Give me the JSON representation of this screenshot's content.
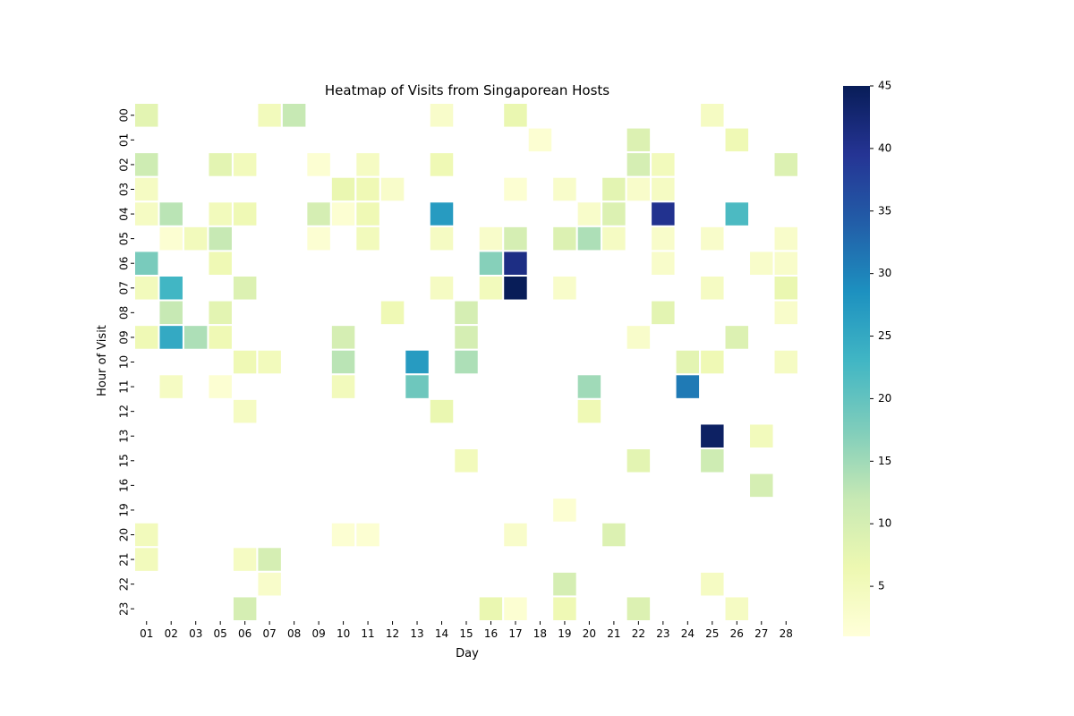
{
  "chart_data": {
    "type": "heatmap",
    "title": "Heatmap of Visits from Singaporean Hosts",
    "xlabel": "Day",
    "ylabel": "Hour of Visit",
    "x_categories": [
      "01",
      "02",
      "03",
      "05",
      "06",
      "07",
      "08",
      "09",
      "10",
      "11",
      "12",
      "13",
      "14",
      "15",
      "16",
      "17",
      "18",
      "19",
      "20",
      "21",
      "22",
      "23",
      "24",
      "25",
      "26",
      "27",
      "28"
    ],
    "y_categories": [
      "00",
      "01",
      "02",
      "03",
      "04",
      "05",
      "06",
      "07",
      "08",
      "09",
      "10",
      "11",
      "12",
      "13",
      "15",
      "16",
      "19",
      "20",
      "21",
      "22",
      "23"
    ],
    "colorbar": {
      "min": 1,
      "max": 45,
      "ticks": [
        5,
        10,
        15,
        20,
        25,
        30,
        35,
        40,
        45
      ],
      "colormap": "YlGnBu"
    },
    "values": [
      [
        8,
        null,
        null,
        null,
        null,
        5,
        12,
        null,
        null,
        null,
        null,
        null,
        3,
        null,
        null,
        7,
        null,
        null,
        null,
        null,
        null,
        null,
        null,
        4,
        null,
        null,
        null
      ],
      [
        null,
        null,
        null,
        null,
        null,
        null,
        null,
        null,
        null,
        null,
        null,
        null,
        null,
        null,
        null,
        null,
        2,
        null,
        null,
        null,
        9,
        null,
        null,
        null,
        6,
        null,
        null
      ],
      [
        11,
        null,
        null,
        8,
        5,
        null,
        null,
        2,
        null,
        4,
        null,
        null,
        6,
        null,
        null,
        null,
        null,
        null,
        null,
        null,
        10,
        5,
        null,
        null,
        null,
        null,
        9
      ],
      [
        4,
        null,
        null,
        null,
        null,
        null,
        null,
        null,
        7,
        6,
        3,
        null,
        null,
        null,
        null,
        2,
        null,
        3,
        null,
        8,
        3,
        4,
        null,
        null,
        null,
        null,
        null
      ],
      [
        4,
        13,
        null,
        5,
        6,
        null,
        null,
        10,
        2,
        6,
        null,
        null,
        27,
        null,
        null,
        null,
        null,
        null,
        3,
        9,
        null,
        40,
        null,
        null,
        22,
        null,
        null
      ],
      [
        null,
        2,
        5,
        12,
        null,
        null,
        null,
        2,
        null,
        5,
        null,
        null,
        4,
        null,
        3,
        10,
        null,
        9,
        14,
        4,
        null,
        3,
        null,
        3,
        null,
        null,
        3
      ],
      [
        18,
        null,
        null,
        6,
        null,
        null,
        null,
        null,
        null,
        null,
        null,
        null,
        null,
        null,
        17,
        41,
        null,
        null,
        null,
        null,
        null,
        3,
        null,
        null,
        null,
        3,
        3
      ],
      [
        5,
        23,
        null,
        null,
        9,
        null,
        null,
        null,
        null,
        null,
        null,
        null,
        4,
        null,
        5,
        45,
        null,
        3,
        null,
        null,
        null,
        null,
        null,
        4,
        null,
        null,
        7
      ],
      [
        null,
        12,
        null,
        8,
        null,
        null,
        null,
        null,
        null,
        null,
        6,
        null,
        null,
        10,
        null,
        null,
        null,
        null,
        null,
        null,
        null,
        8,
        null,
        null,
        null,
        null,
        3
      ],
      [
        6,
        25,
        14,
        6,
        null,
        null,
        null,
        null,
        10,
        null,
        null,
        null,
        null,
        10,
        null,
        null,
        null,
        null,
        null,
        null,
        3,
        null,
        null,
        null,
        9,
        null,
        null
      ],
      [
        null,
        null,
        null,
        null,
        6,
        5,
        null,
        null,
        13,
        null,
        null,
        27,
        null,
        14,
        null,
        null,
        null,
        null,
        null,
        null,
        null,
        null,
        8,
        6,
        null,
        null,
        4
      ],
      [
        null,
        4,
        null,
        2,
        null,
        null,
        null,
        null,
        5,
        null,
        null,
        19,
        null,
        null,
        null,
        null,
        null,
        null,
        15,
        null,
        null,
        null,
        31,
        null,
        null,
        null,
        null
      ],
      [
        null,
        null,
        null,
        null,
        4,
        null,
        null,
        null,
        null,
        null,
        null,
        null,
        7,
        null,
        null,
        null,
        null,
        null,
        6,
        null,
        null,
        null,
        null,
        null,
        null,
        null,
        null
      ],
      [
        null,
        null,
        null,
        null,
        null,
        null,
        null,
        null,
        null,
        null,
        null,
        null,
        null,
        null,
        null,
        null,
        null,
        null,
        null,
        null,
        null,
        null,
        null,
        44,
        null,
        5,
        null
      ],
      [
        null,
        null,
        null,
        null,
        null,
        null,
        null,
        null,
        null,
        null,
        null,
        null,
        null,
        5,
        null,
        null,
        null,
        null,
        null,
        null,
        8,
        null,
        null,
        11,
        null,
        null,
        null
      ],
      [
        null,
        null,
        null,
        null,
        null,
        null,
        null,
        null,
        null,
        null,
        null,
        null,
        null,
        null,
        null,
        null,
        null,
        null,
        null,
        null,
        null,
        null,
        null,
        null,
        null,
        10,
        null
      ],
      [
        null,
        null,
        null,
        null,
        null,
        null,
        null,
        null,
        null,
        null,
        null,
        null,
        null,
        null,
        null,
        null,
        null,
        2,
        null,
        null,
        null,
        null,
        null,
        null,
        null,
        null,
        null
      ],
      [
        5,
        null,
        null,
        null,
        null,
        null,
        null,
        null,
        2,
        2,
        null,
        null,
        null,
        null,
        null,
        3,
        null,
        null,
        null,
        9,
        null,
        null,
        null,
        null,
        null,
        null,
        null
      ],
      [
        5,
        null,
        null,
        null,
        4,
        10,
        null,
        null,
        null,
        null,
        null,
        null,
        null,
        null,
        null,
        null,
        null,
        null,
        null,
        null,
        null,
        null,
        null,
        null,
        null,
        null,
        null
      ],
      [
        null,
        null,
        null,
        null,
        null,
        3,
        null,
        null,
        null,
        null,
        null,
        null,
        null,
        null,
        null,
        null,
        null,
        10,
        null,
        null,
        null,
        null,
        null,
        4,
        null,
        null,
        null
      ],
      [
        null,
        null,
        null,
        null,
        10,
        null,
        null,
        null,
        null,
        null,
        null,
        null,
        null,
        null,
        7,
        2,
        null,
        6,
        null,
        null,
        9,
        null,
        null,
        null,
        4,
        null,
        null
      ]
    ]
  }
}
